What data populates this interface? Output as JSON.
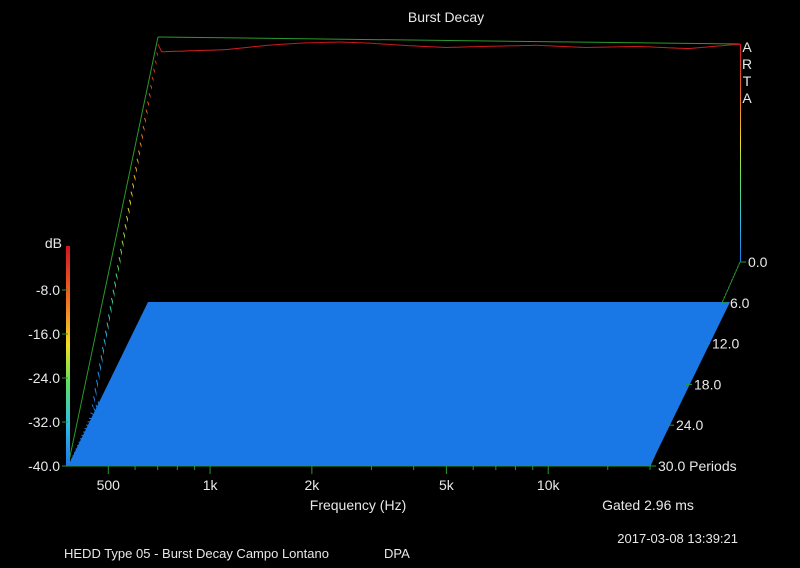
{
  "chart_data": {
    "type": "heatmap",
    "title": "Burst Decay",
    "xlabel": "Frequency (Hz)",
    "ylabel": "dB",
    "zlabel": "Periods",
    "gated": "Gated 2.96 ms",
    "x_scale": "log",
    "x_range": [
      380,
      20000
    ],
    "x_ticks": [
      "500",
      "1k",
      "2k",
      "5k",
      "10k"
    ],
    "y_range": [
      -40,
      0
    ],
    "y_ticks": [
      "-8.0",
      "-16.0",
      "-24.0",
      "-32.0",
      "-40.0"
    ],
    "z_range": [
      0,
      30
    ],
    "z_ticks": [
      "0.0",
      "6.0",
      "12.0",
      "18.0",
      "24.0",
      "30.0 Periods"
    ],
    "initial_response_db": [
      {
        "f": 380,
        "db": -1.8
      },
      {
        "f": 600,
        "db": -1.4
      },
      {
        "f": 800,
        "db": -0.6
      },
      {
        "f": 1000,
        "db": -0.2
      },
      {
        "f": 1300,
        "db": 0.0
      },
      {
        "f": 1600,
        "db": -0.2
      },
      {
        "f": 2000,
        "db": -0.6
      },
      {
        "f": 2700,
        "db": -1.0
      },
      {
        "f": 3500,
        "db": -0.8
      },
      {
        "f": 5000,
        "db": -0.6
      },
      {
        "f": 7000,
        "db": -1.0
      },
      {
        "f": 10000,
        "db": -0.8
      },
      {
        "f": 14000,
        "db": -1.2
      },
      {
        "f": 20000,
        "db": -0.4
      }
    ]
  },
  "footer": {
    "timestamp": "2017-03-08  13:39:21",
    "caption": "HEDD Type 05 - Burst Decay Campo Lontano",
    "mic": "DPA"
  },
  "logo": {
    "letters": [
      "A",
      "R",
      "T",
      "A"
    ]
  },
  "colors": {
    "background": "#000000",
    "frame": "#2a9a2a",
    "floor": "#1a78e6",
    "text": "#e8e8e8"
  }
}
